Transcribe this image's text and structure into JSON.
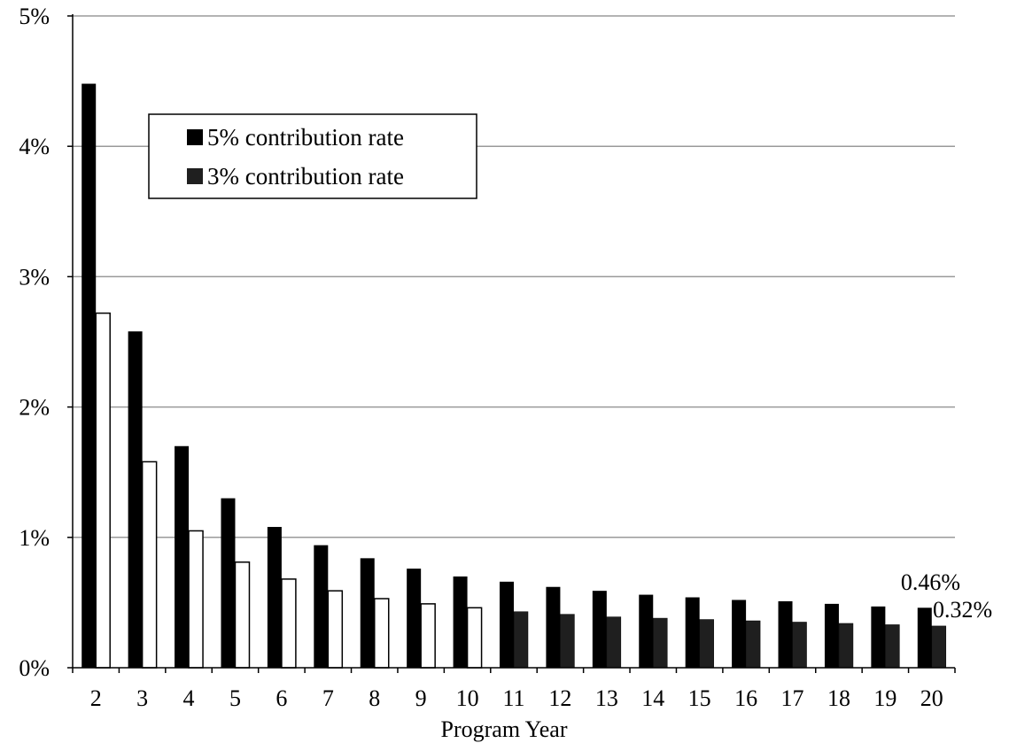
{
  "chart_data": {
    "type": "bar",
    "title": "",
    "xlabel": "Program Year",
    "ylabel": "",
    "categories": [
      "2",
      "3",
      "4",
      "5",
      "6",
      "7",
      "8",
      "9",
      "10",
      "11",
      "12",
      "13",
      "14",
      "15",
      "16",
      "17",
      "18",
      "19",
      "20"
    ],
    "series": [
      {
        "name": "5% contribution rate",
        "values": [
          4.48,
          2.58,
          1.7,
          1.3,
          1.08,
          0.94,
          0.84,
          0.76,
          0.7,
          0.66,
          0.62,
          0.59,
          0.56,
          0.54,
          0.52,
          0.51,
          0.49,
          0.47,
          0.46
        ],
        "color": "#000000"
      },
      {
        "name": "3% contribution rate",
        "values": [
          2.72,
          1.58,
          1.05,
          0.81,
          0.68,
          0.59,
          0.53,
          0.49,
          0.46,
          0.43,
          0.41,
          0.39,
          0.38,
          0.37,
          0.36,
          0.35,
          0.34,
          0.33,
          0.32
        ],
        "colors": {
          "years_2_to_10": "#ffffff",
          "years_11_to_20": "#1f1f1f"
        }
      }
    ],
    "ylim": [
      0,
      5
    ],
    "yticks": [
      "0%",
      "1%",
      "2%",
      "3%",
      "4%",
      "5%"
    ],
    "grid": true,
    "legend_position": "top-left",
    "annotations": [
      {
        "series": "5% contribution rate",
        "category": "20",
        "text": "0.46%"
      },
      {
        "series": "3% contribution rate",
        "category": "20",
        "text": "0.32%"
      }
    ]
  }
}
